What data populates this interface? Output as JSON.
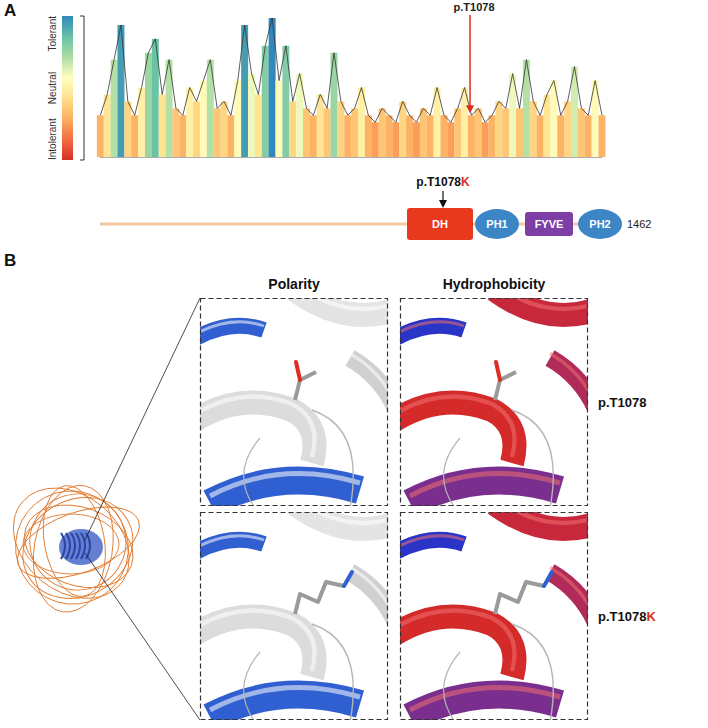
{
  "chart_data": {
    "type": "bar",
    "x": [
      2,
      22,
      42,
      62,
      82,
      102,
      122,
      142,
      162,
      182,
      202,
      222,
      242,
      262,
      282,
      302,
      322,
      342,
      362,
      382,
      402,
      422,
      442,
      462,
      482,
      502,
      522,
      542,
      562,
      582,
      602,
      622,
      642,
      662,
      682,
      702,
      722,
      742,
      762,
      782,
      802,
      822,
      842,
      862,
      882,
      902,
      922,
      942,
      962,
      982,
      1002,
      1022,
      1042,
      1062,
      1082,
      1102,
      1122,
      1142,
      1162,
      1182,
      1202,
      1222,
      1242,
      1262,
      1282,
      1302,
      1322,
      1342,
      1362,
      1382,
      1402,
      1422,
      1442,
      1462
    ],
    "values": [
      0.3,
      0.45,
      0.7,
      0.95,
      0.4,
      0.3,
      0.5,
      0.75,
      0.85,
      0.45,
      0.7,
      0.35,
      0.3,
      0.5,
      0.4,
      0.55,
      0.7,
      0.35,
      0.4,
      0.3,
      0.55,
      0.95,
      0.6,
      0.45,
      0.8,
      1,
      0.55,
      0.8,
      0.4,
      0.6,
      0.35,
      0.3,
      0.45,
      0.35,
      0.75,
      0.4,
      0.3,
      0.35,
      0.5,
      0.3,
      0.25,
      0.35,
      0.3,
      0.25,
      0.4,
      0.3,
      0.25,
      0.35,
      0.3,
      0.5,
      0.3,
      0.25,
      0.35,
      0.5,
      0.3,
      0.35,
      0.25,
      0.3,
      0.4,
      0.35,
      0.6,
      0.35,
      0.7,
      0.4,
      0.3,
      0.45,
      0.55,
      0.3,
      0.4,
      0.65,
      0.35,
      0.3,
      0.55,
      0.3
    ],
    "xlim": [
      1,
      1462
    ],
    "ylim": [
      0,
      1
    ],
    "tick_labels": false,
    "grid": false,
    "annotations": [
      {
        "text": "p.T1078",
        "x": 1078
      }
    ],
    "color_scale": {
      "range": [
        0,
        1
      ],
      "ticks": [
        {
          "value": 0,
          "label": "Intolerant"
        },
        {
          "value": 0.5,
          "label": "Neutral"
        },
        {
          "value": 1,
          "label": "Tolerant"
        }
      ]
    }
  },
  "panel_labels": [
    "A",
    "B"
  ],
  "domain_diagram": {
    "length": 1462,
    "domains": [
      "DH",
      "PH1",
      "FYVE",
      "PH2"
    ],
    "variant": {
      "label": "p.T1078",
      "mutant_residue": "K"
    }
  },
  "structure_panels": {
    "columns": [
      "Polarity",
      "Hydrophobicity"
    ],
    "rows": [
      {
        "label": "p.T1078"
      },
      {
        "label": "p.T1078",
        "mutant_residue": "K"
      }
    ]
  }
}
